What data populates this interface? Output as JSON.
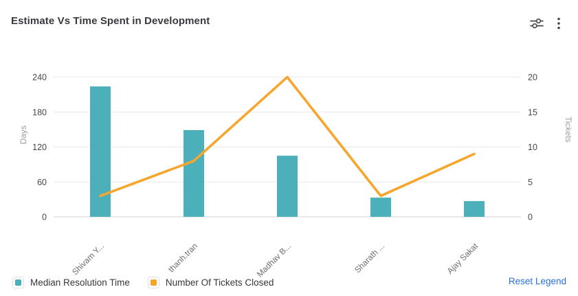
{
  "header": {
    "title": "Estimate Vs Time Spent in Development",
    "icons": {
      "settings": "sliders-icon",
      "menu": "kebab-menu-icon"
    }
  },
  "chart_data": {
    "type": "combo-bar-line",
    "title": "Estimate Vs Time Spent in Development",
    "categories": [
      "Shivam Y...",
      "thanh.tran",
      "Madhav B...",
      "Sharath ...",
      "Ajay Sakat"
    ],
    "series": [
      {
        "name": "Median Resolution Time",
        "type": "bar",
        "axis": "left",
        "color": "#4BB0BA",
        "values": [
          224,
          149,
          105,
          33,
          27
        ]
      },
      {
        "name": "Number Of Tickets Closed",
        "type": "line",
        "axis": "right",
        "color": "#F6A52D",
        "values": [
          3,
          8,
          20,
          3,
          9
        ]
      }
    ],
    "left_axis": {
      "label": "Days",
      "ticks": [
        0,
        60,
        120,
        180,
        240
      ],
      "max": 240
    },
    "right_axis": {
      "label": "Tickets",
      "ticks": [
        0,
        5,
        10,
        15,
        20
      ],
      "max": 20
    },
    "grid": true,
    "legend_position": "bottom-left"
  },
  "legend": {
    "items": [
      {
        "label": "Median Resolution Time",
        "color": "#4BB0BA"
      },
      {
        "label": "Number Of Tickets Closed",
        "color": "#F6A52D"
      }
    ],
    "reset_label": "Reset Legend"
  },
  "colors": {
    "bar": "#4BB0BA",
    "line": "#F6A52D",
    "gridline": "#ededed",
    "axis_line": "#dcdcdc",
    "tick_text": "#45474b",
    "category_text": "#6b6d72",
    "axis_name_text": "#9b9da1",
    "title_text": "#37393e",
    "link": "#2670d9",
    "icon": "#44474d"
  }
}
